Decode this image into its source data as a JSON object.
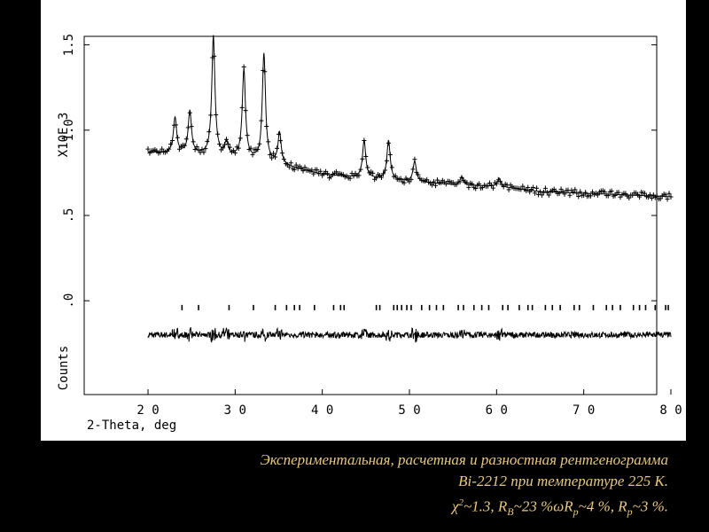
{
  "chart_data": {
    "type": "scatter",
    "xlabel": "2-Theta, deg",
    "ylabel": "Counts",
    "y_scale_label": "X10E  3",
    "xlim": [
      20,
      80
    ],
    "ylim": [
      -0.55,
      1.55
    ],
    "x_ticks": [
      20,
      30,
      40,
      50,
      60,
      70,
      80
    ],
    "x_tick_labels": [
      "2 0",
      "3 0",
      "4 0",
      "5 0",
      "6 0",
      "7 0",
      "8 0"
    ],
    "y_ticks": [
      0.0,
      0.5,
      1.0,
      1.5
    ],
    "y_tick_labels": [
      ".0",
      ".5",
      "1.0",
      "1.5"
    ],
    "background": [
      [
        20,
        0.87
      ],
      [
        25,
        0.86
      ],
      [
        30,
        0.84
      ],
      [
        35,
        0.8
      ],
      [
        40,
        0.74
      ],
      [
        45,
        0.72
      ],
      [
        50,
        0.7
      ],
      [
        55,
        0.68
      ],
      [
        60,
        0.67
      ],
      [
        65,
        0.64
      ],
      [
        70,
        0.63
      ],
      [
        75,
        0.62
      ],
      [
        80,
        0.61
      ]
    ],
    "peaks": [
      {
        "x": 23.1,
        "h": 0.21
      },
      {
        "x": 24.8,
        "h": 0.25
      },
      {
        "x": 27.5,
        "h": 0.7
      },
      {
        "x": 29.0,
        "h": 0.08
      },
      {
        "x": 31.0,
        "h": 0.52
      },
      {
        "x": 33.3,
        "h": 0.63
      },
      {
        "x": 35.1,
        "h": 0.18
      },
      {
        "x": 44.8,
        "h": 0.22
      },
      {
        "x": 47.6,
        "h": 0.23
      },
      {
        "x": 50.6,
        "h": 0.12
      },
      {
        "x": 56.0,
        "h": 0.05
      },
      {
        "x": 60.3,
        "h": 0.05
      }
    ],
    "reflection_markers": [
      23.9,
      25.8,
      29.3,
      32.1,
      34.6,
      35.9,
      36.8,
      37.4,
      39.1,
      41.3,
      42.1,
      42.5,
      46.2,
      46.6,
      48.2,
      48.6,
      49.1,
      49.7,
      50.2,
      51.4,
      52.3,
      53.1,
      53.9,
      55.6,
      56.2,
      57.4,
      58.3,
      59.1,
      60.7,
      61.3,
      62.6,
      63.6,
      64.1,
      65.6,
      66.4,
      67.3,
      68.9,
      69.5,
      71.1,
      72.6,
      73.3,
      74.2,
      75.7,
      76.4,
      77.1,
      78.2,
      79.4,
      79.7
    ],
    "marker_y": -0.04,
    "difference_offset": -0.2
  },
  "caption": {
    "line1": "Экспериментальная, расчетная и разностная рентгенограмма",
    "line2": "Bi-2212 при температуре 225 К.",
    "chi": "χ",
    "chi_sup": "2",
    "chi_value": "~1.3,  R",
    "rb_sub": "B",
    "rb_value": "~23 %ωR",
    "rp_sub": "p",
    "rp_value": "~4 %,  R",
    "rp2_sub": "p",
    "rp2_value": "~3 %."
  }
}
